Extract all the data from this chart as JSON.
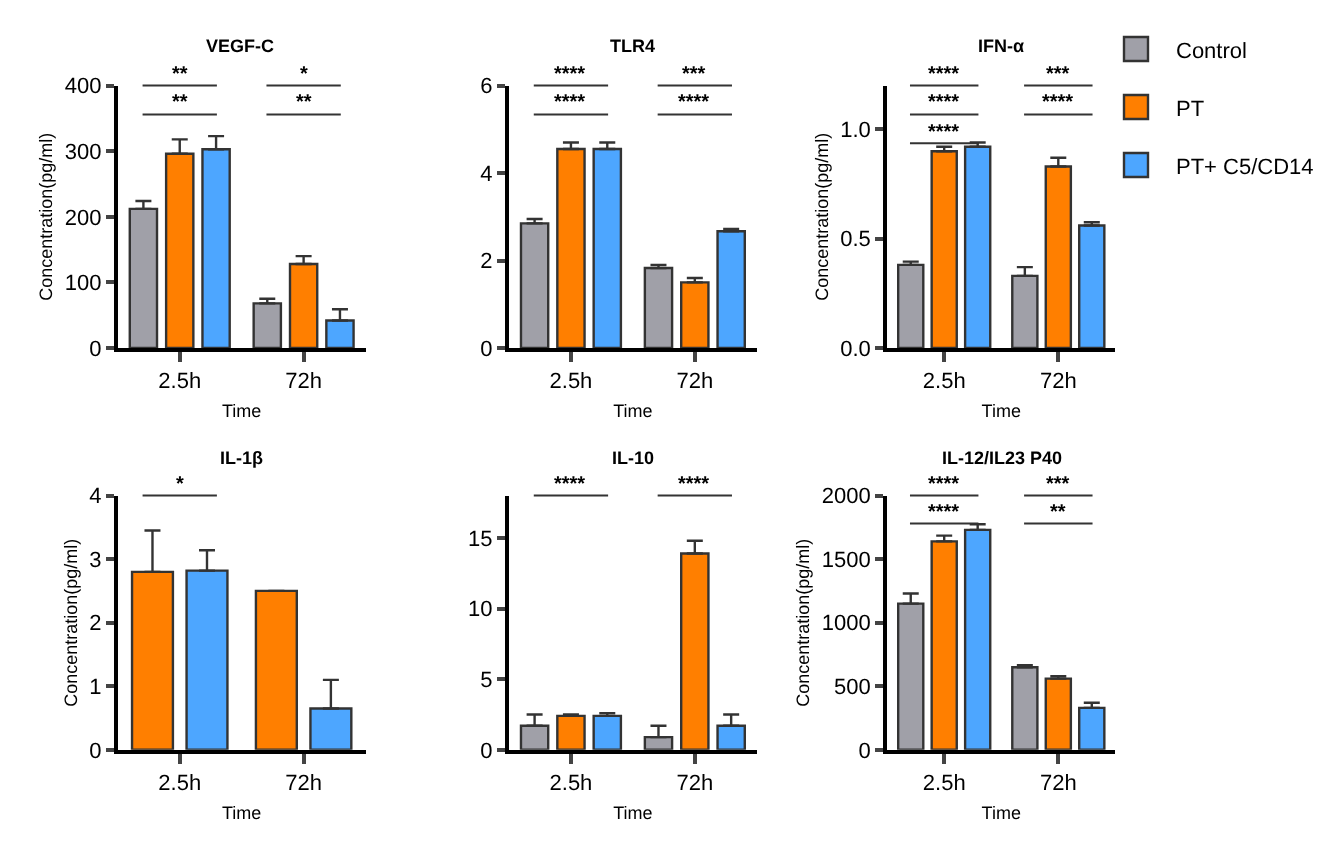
{
  "chart_data": [
    {
      "type": "bar",
      "title": "VEGF-C",
      "xlabel": "Time",
      "ylabel": "Concentration(pg/ml)",
      "categories": [
        "2.5h",
        "72h"
      ],
      "ylim": [
        0,
        400
      ],
      "yticks": [
        0,
        100,
        200,
        300,
        400
      ],
      "legend": "top right",
      "series": [
        {
          "name": "Control",
          "color": "#a0a0a8",
          "values": [
            212,
            68
          ],
          "errors": [
            12,
            7
          ]
        },
        {
          "name": "PT",
          "color": "#ff7f00",
          "values": [
            296,
            128
          ],
          "errors": [
            22,
            12
          ]
        },
        {
          "name": "PT+ C5/CD14",
          "color": "#4da6ff",
          "values": [
            303,
            42
          ],
          "errors": [
            20,
            17
          ]
        }
      ],
      "annotations": [
        "**",
        "*",
        "**",
        "**"
      ]
    },
    {
      "type": "bar",
      "title": "TLR4",
      "xlabel": "Time",
      "categories": [
        "2.5h",
        "72h"
      ],
      "ylim": [
        0,
        6
      ],
      "yticks": [
        0,
        2,
        4,
        6
      ],
      "series": [
        {
          "color": "#a0a0a8",
          "values": [
            2.85,
            1.83
          ],
          "errors": [
            0.1,
            0.07
          ]
        },
        {
          "color": "#ff7f00",
          "values": [
            4.55,
            1.5
          ],
          "errors": [
            0.15,
            0.1
          ]
        },
        {
          "color": "#4da6ff",
          "values": [
            4.55,
            2.67
          ],
          "errors": [
            0.15,
            0.05
          ]
        }
      ],
      "annotations": [
        "****",
        "***",
        "****",
        "****"
      ]
    },
    {
      "type": "bar",
      "title": "IFN-α",
      "xlabel": "Time",
      "ylabel": "Concentration(pg/ml)",
      "categories": [
        "2.5h",
        "72h"
      ],
      "ylim": [
        0,
        1.2
      ],
      "yticks": [
        {
          "value": 0,
          "label": "0.0"
        },
        0.5,
        {
          "value": 1,
          "label": "1.0"
        }
      ],
      "series": [
        {
          "color": "#a0a0a8",
          "values": [
            0.38,
            0.33
          ],
          "errors": [
            0.015,
            0.04
          ]
        },
        {
          "color": "#ff7f00",
          "values": [
            0.9,
            0.83
          ],
          "errors": [
            0.02,
            0.04
          ]
        },
        {
          "color": "#4da6ff",
          "values": [
            0.92,
            0.56
          ],
          "errors": [
            0.02,
            0.015
          ]
        }
      ],
      "annotations": [
        "****",
        "***",
        "****",
        "****",
        "****"
      ]
    },
    {
      "type": "bar",
      "title": "IL-1β",
      "xlabel": "Time",
      "ylabel": "Concentration(pg/ml)",
      "categories": [
        "2.5h",
        "72h"
      ],
      "ylim": [
        0,
        4
      ],
      "yticks": [
        0,
        1,
        2,
        3,
        4
      ],
      "series": [
        {
          "color": "#ff7f00",
          "values": [
            2.8,
            2.5
          ],
          "errors": [
            0.65,
            null
          ]
        },
        {
          "color": "#4da6ff",
          "values": [
            2.82,
            0.65
          ],
          "errors": [
            0.32,
            0.45
          ]
        }
      ],
      "annotations": [
        "*"
      ]
    },
    {
      "type": "bar",
      "title": "IL-10",
      "xlabel": "Time",
      "categories": [
        "2.5h",
        "72h"
      ],
      "ylim": [
        0,
        18
      ],
      "yticks": [
        0,
        5,
        10,
        15
      ],
      "series": [
        {
          "color": "#a0a0a8",
          "values": [
            1.7,
            0.9
          ],
          "errors": [
            0.8,
            0.8
          ]
        },
        {
          "color": "#ff7f00",
          "values": [
            2.4,
            13.9
          ],
          "errors": [
            0.1,
            0.9
          ]
        },
        {
          "color": "#4da6ff",
          "values": [
            2.4,
            1.7
          ],
          "errors": [
            0.2,
            0.8
          ]
        }
      ],
      "annotations": [
        "****",
        "****"
      ]
    },
    {
      "type": "bar",
      "title": "IL-12/IL23 P40",
      "xlabel": "Time",
      "ylabel": "Concentration(pg/ml)",
      "categories": [
        "2.5h",
        "72h"
      ],
      "ylim": [
        0,
        2000
      ],
      "yticks": [
        0,
        500,
        1000,
        1500,
        2000
      ],
      "series": [
        {
          "color": "#a0a0a8",
          "values": [
            1150,
            650
          ],
          "errors": [
            80,
            15
          ]
        },
        {
          "color": "#ff7f00",
          "values": [
            1640,
            560
          ],
          "errors": [
            45,
            20
          ]
        },
        {
          "color": "#4da6ff",
          "values": [
            1730,
            330
          ],
          "errors": [
            45,
            40
          ]
        }
      ],
      "annotations": [
        "****",
        "***",
        "****",
        "**"
      ]
    }
  ]
}
